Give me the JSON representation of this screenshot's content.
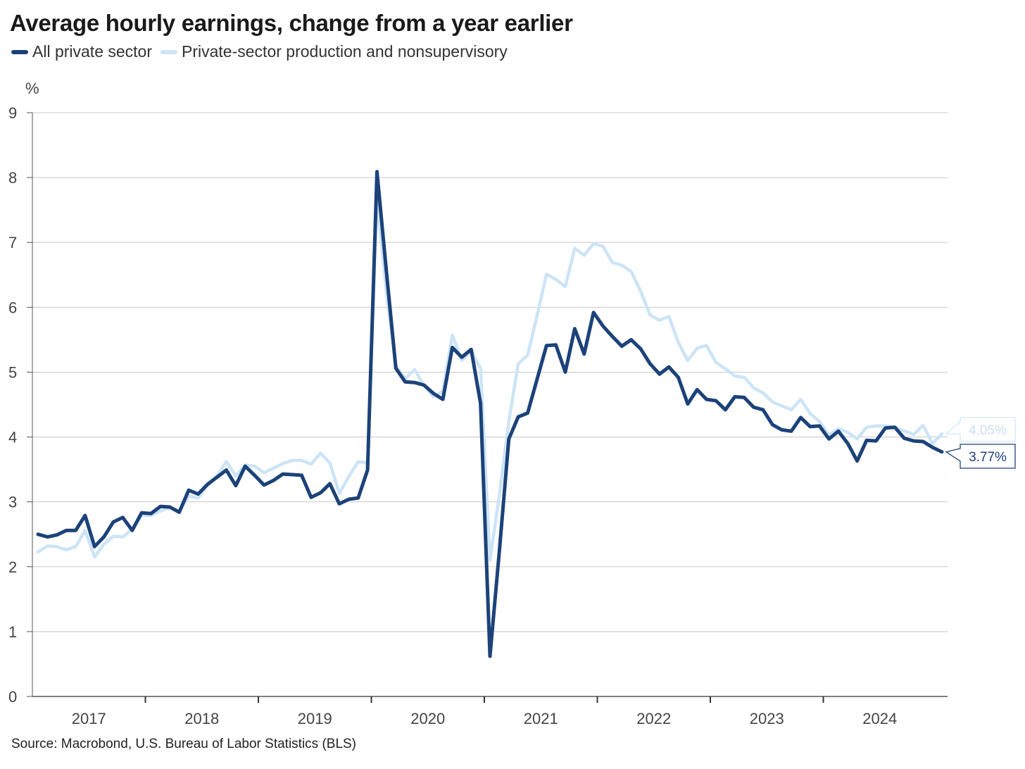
{
  "source": "Source: Macrobond, U.S. Bureau of Labor Statistics (BLS)",
  "chart_data": {
    "type": "line",
    "title": "Average hourly earnings, change from a year earlier",
    "ylabel": "%",
    "ylim": [
      0,
      9
    ],
    "yticks": [
      "0",
      "1",
      "2",
      "3",
      "4",
      "5",
      "6",
      "7",
      "8",
      "9"
    ],
    "xlabels": [
      "2017",
      "2018",
      "2019",
      "2020",
      "2021",
      "2022",
      "2023",
      "2024"
    ],
    "grid": true,
    "legend_position": "top-left",
    "start": "2017-01",
    "series": [
      {
        "name": "All private sector",
        "color": "#1c4279",
        "end_label": "3.77%",
        "values": [
          2.5,
          2.46,
          2.49,
          2.56,
          2.56,
          2.79,
          2.31,
          2.46,
          2.69,
          2.76,
          2.56,
          2.83,
          2.82,
          2.93,
          2.92,
          2.84,
          3.18,
          3.12,
          3.27,
          3.38,
          3.49,
          3.25,
          3.55,
          3.41,
          3.26,
          3.33,
          3.43,
          3.42,
          3.41,
          3.07,
          3.14,
          3.28,
          2.97,
          3.04,
          3.06,
          3.49,
          8.09,
          6.55,
          5.06,
          4.85,
          4.84,
          4.8,
          4.67,
          4.58,
          5.38,
          5.23,
          5.35,
          4.52,
          0.62,
          2.25,
          3.97,
          4.31,
          4.37,
          4.89,
          5.41,
          5.42,
          5.0,
          5.67,
          5.28,
          5.92,
          5.71,
          5.55,
          5.4,
          5.5,
          5.36,
          5.13,
          4.97,
          5.08,
          4.92,
          4.51,
          4.73,
          4.58,
          4.56,
          4.42,
          4.62,
          4.61,
          4.46,
          4.42,
          4.19,
          4.11,
          4.09,
          4.3,
          4.16,
          4.17,
          3.97,
          4.09,
          3.9,
          3.63,
          3.95,
          3.94,
          4.14,
          4.15,
          3.98,
          3.94,
          3.93,
          3.84,
          3.77
        ]
      },
      {
        "name": "Private-sector production and nonsupervisory",
        "color": "#cce4f6",
        "end_label": "4.05%",
        "values": [
          2.23,
          2.32,
          2.31,
          2.26,
          2.31,
          2.56,
          2.15,
          2.35,
          2.47,
          2.46,
          2.58,
          2.79,
          2.79,
          2.86,
          2.91,
          2.86,
          3.09,
          3.06,
          3.25,
          3.4,
          3.62,
          3.4,
          3.57,
          3.55,
          3.45,
          3.52,
          3.59,
          3.64,
          3.64,
          3.58,
          3.75,
          3.6,
          3.13,
          3.39,
          3.62,
          3.6,
          7.68,
          6.23,
          5.1,
          4.9,
          5.04,
          4.79,
          4.62,
          4.7,
          5.57,
          5.18,
          5.32,
          5.06,
          2.1,
          3.11,
          4.24,
          5.13,
          5.26,
          5.87,
          6.51,
          6.43,
          6.32,
          6.91,
          6.8,
          6.98,
          6.94,
          6.69,
          6.65,
          6.55,
          6.25,
          5.88,
          5.8,
          5.86,
          5.46,
          5.18,
          5.37,
          5.41,
          5.15,
          5.05,
          4.94,
          4.92,
          4.76,
          4.68,
          4.54,
          4.48,
          4.42,
          4.58,
          4.36,
          4.24,
          4.03,
          4.13,
          4.07,
          3.97,
          4.15,
          4.17,
          4.17,
          4.15,
          4.09,
          4.04,
          4.18,
          3.9,
          4.05
        ]
      }
    ]
  }
}
